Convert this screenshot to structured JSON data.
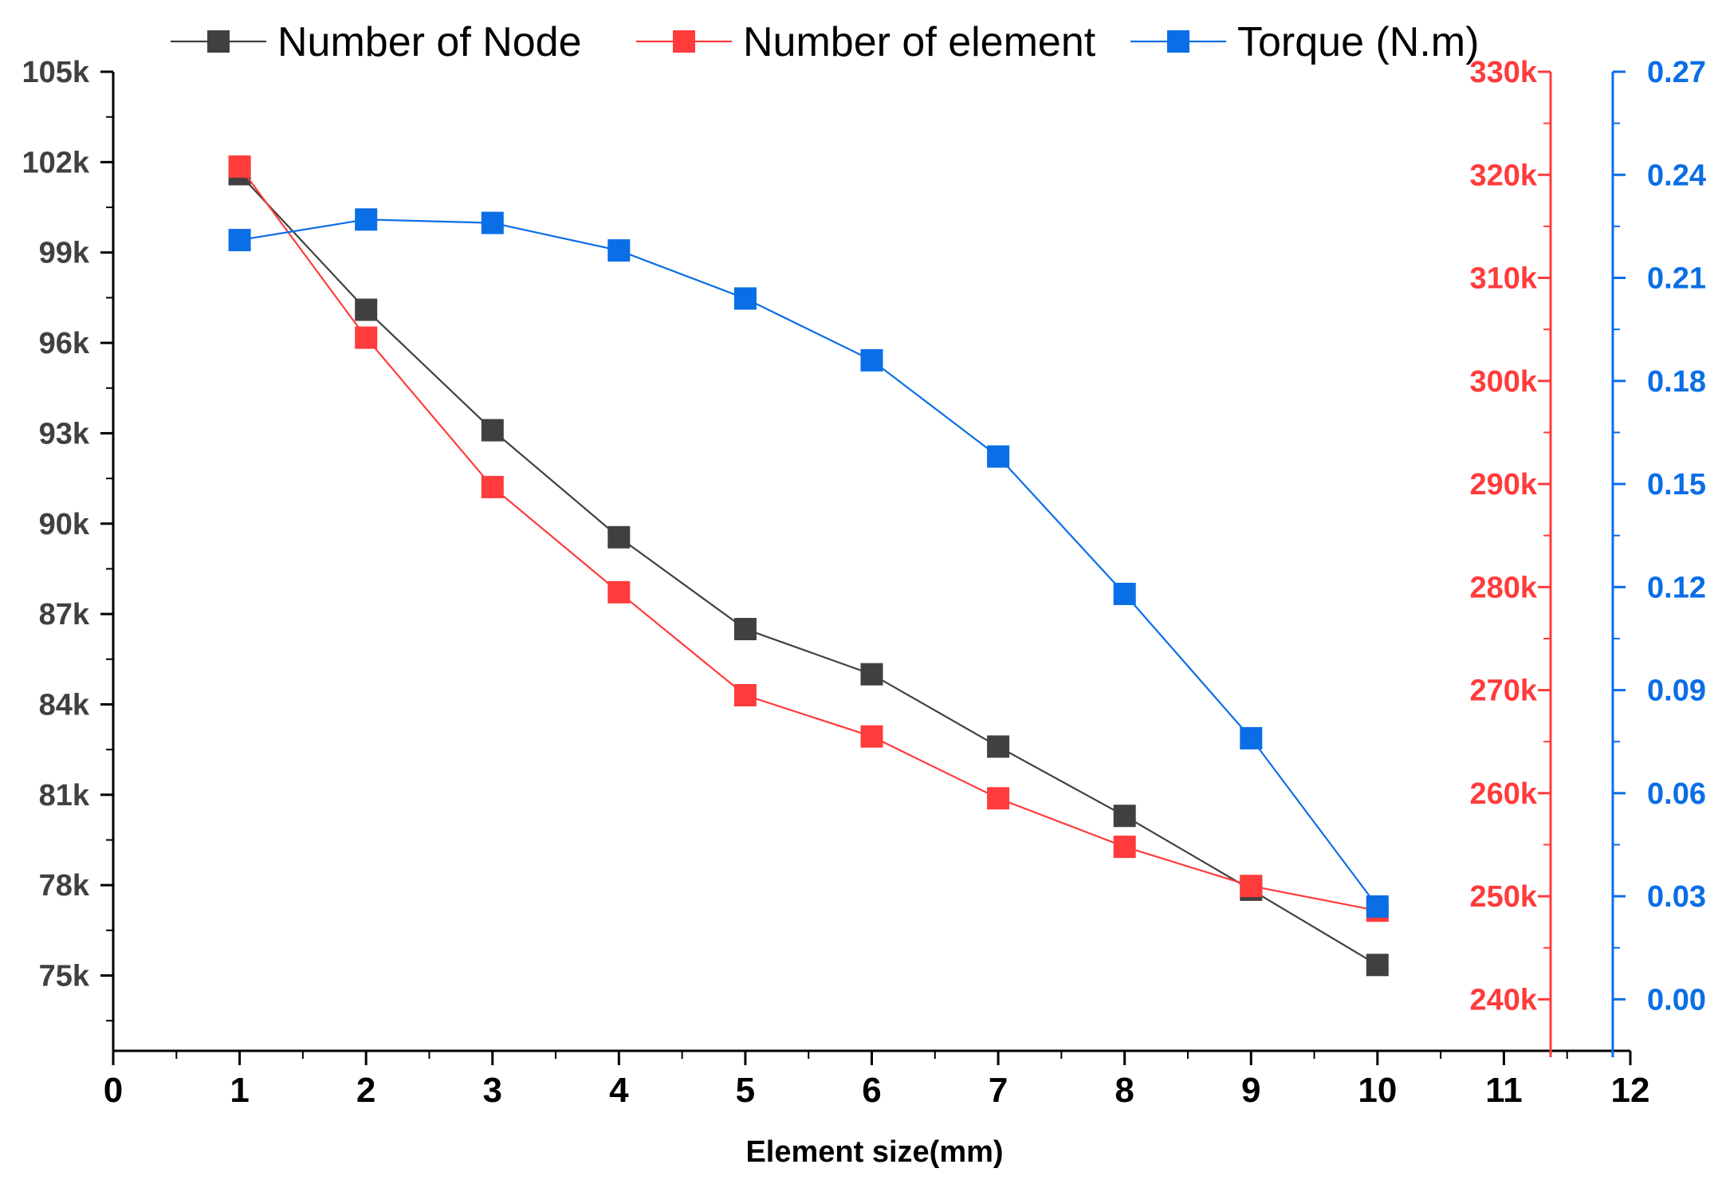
{
  "chart_data": {
    "type": "line",
    "title": "",
    "xlabel": "Element size(mm)",
    "xlim": [
      0,
      12
    ],
    "x_ticks": [
      "0",
      "1",
      "2",
      "3",
      "4",
      "5",
      "6",
      "7",
      "8",
      "9",
      "10",
      "11",
      "12"
    ],
    "x": [
      1,
      2,
      3,
      4,
      5,
      6,
      7,
      8,
      9,
      10
    ],
    "series": [
      {
        "name": "Number of Node",
        "axis": "left",
        "color": "#404040",
        "values": [
          101600,
          97100,
          93100,
          89550,
          86500,
          85000,
          82600,
          80300,
          77850,
          75350
        ]
      },
      {
        "name": "Number of element",
        "axis": "right-1",
        "color": "#ff3b3b",
        "values": [
          320800,
          304200,
          289700,
          279500,
          269500,
          265500,
          259500,
          254800,
          251000,
          248600
        ]
      },
      {
        "name": "Torque (N.m)",
        "axis": "right-2",
        "color": "#0a6ee6",
        "values": [
          0.221,
          0.227,
          0.226,
          0.218,
          0.204,
          0.186,
          0.158,
          0.118,
          0.076,
          0.027
        ]
      }
    ],
    "axes": {
      "left": {
        "ylim": [
          72500,
          105000
        ],
        "ticks": [
          75000,
          78000,
          81000,
          84000,
          87000,
          90000,
          93000,
          96000,
          99000,
          102000,
          105000
        ],
        "tick_labels": [
          "75k",
          "78k",
          "81k",
          "84k",
          "87k",
          "90k",
          "93k",
          "96k",
          "99k",
          "102k",
          "105k"
        ],
        "color": "#404040"
      },
      "right-1": {
        "ylim": [
          235000,
          330000
        ],
        "ticks": [
          240000,
          250000,
          260000,
          270000,
          280000,
          290000,
          300000,
          310000,
          320000,
          330000
        ],
        "tick_labels": [
          "240k",
          "250k",
          "260k",
          "270k",
          "280k",
          "290k",
          "300k",
          "310k",
          "320k",
          "330k"
        ],
        "color": "#ff3b3b"
      },
      "right-2": {
        "ylim": [
          -0.015,
          0.27
        ],
        "ticks": [
          0.0,
          0.03,
          0.06,
          0.09,
          0.12,
          0.15,
          0.18,
          0.21,
          0.24,
          0.27
        ],
        "tick_labels": [
          "0.00",
          "0.03",
          "0.06",
          "0.09",
          "0.12",
          "0.15",
          "0.18",
          "0.21",
          "0.24",
          "0.27"
        ],
        "color": "#0a6ee6"
      }
    },
    "legend": {
      "placement": "top",
      "entries": [
        "Number of Node",
        "Number of element",
        "Torque (N.m)"
      ]
    },
    "grid": false
  }
}
